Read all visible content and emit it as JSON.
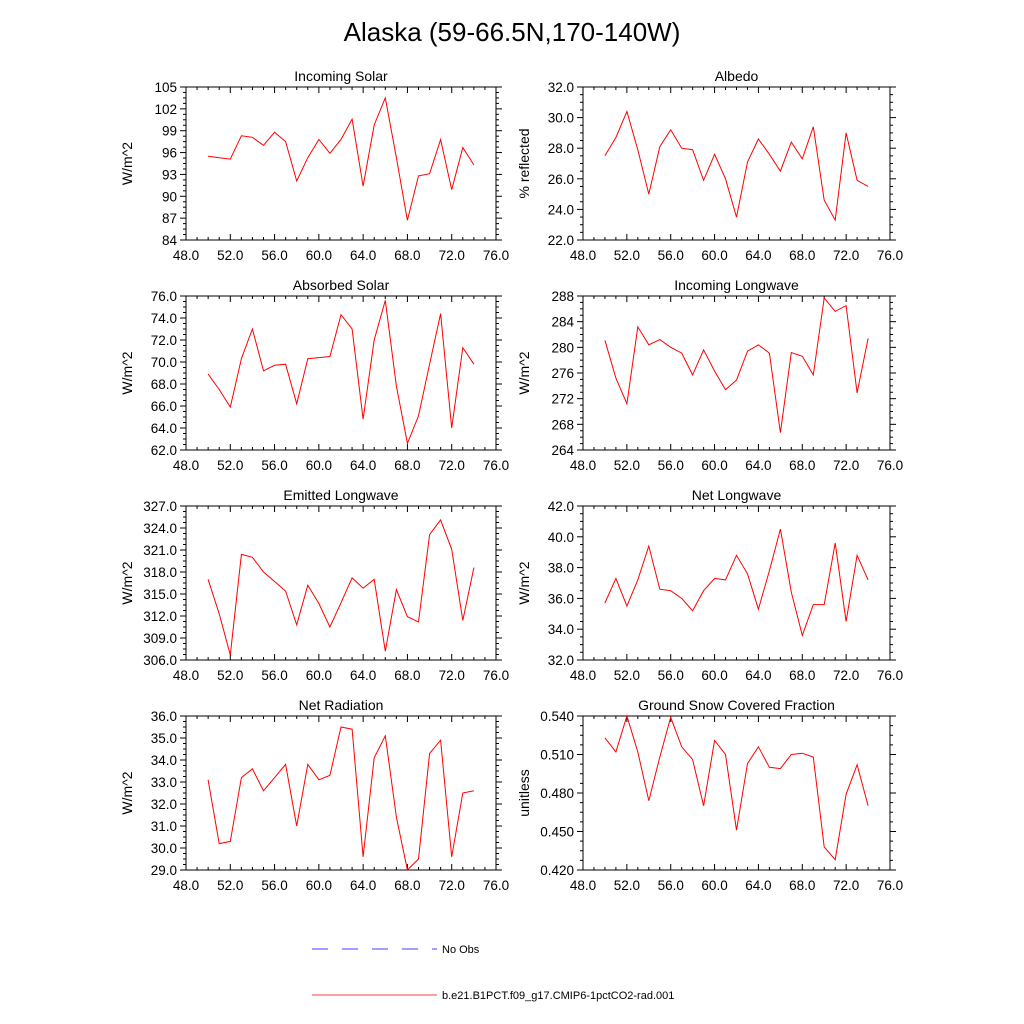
{
  "title": "Alaska (59-66.5N,170-140W)",
  "legend": {
    "items": [
      {
        "label": "No Obs",
        "color": "#0000ff",
        "style": "dashed"
      },
      {
        "label": "b.e21.B1PCT.f09_g17.CMIP6-1pctCO2-rad.001",
        "color": "#ff0000",
        "style": "solid"
      }
    ]
  },
  "chart_data": [
    {
      "type": "line",
      "title": "Incoming Solar",
      "ylabel": "W/m^2",
      "xlim": [
        48,
        76
      ],
      "ylim": [
        84,
        105
      ],
      "xticks": [
        "48.0",
        "52.0",
        "56.0",
        "60.0",
        "64.0",
        "68.0",
        "72.0",
        "76.0"
      ],
      "yticks": [
        "84",
        "87",
        "90",
        "93",
        "96",
        "99",
        "102",
        "105"
      ],
      "grid": false,
      "series": [
        {
          "name": "b.e21.B1PCT.f09_g17.CMIP6-1pctCO2-rad.001",
          "color": "#ff0000",
          "x": [
            50,
            51,
            52,
            53,
            54,
            55,
            56,
            57,
            58,
            59,
            60,
            61,
            62,
            63,
            64,
            65,
            66,
            67,
            68,
            69,
            70,
            71,
            72,
            73,
            74
          ],
          "y": [
            95.5,
            95.3,
            95.1,
            98.3,
            98.1,
            97.0,
            98.8,
            97.5,
            92.1,
            95.3,
            97.8,
            95.9,
            97.8,
            100.6,
            91.4,
            99.8,
            103.5,
            95.3,
            86.7,
            92.8,
            93.1,
            97.8,
            90.9,
            96.7,
            94.3
          ]
        }
      ]
    },
    {
      "type": "line",
      "title": "Albedo",
      "ylabel": "% reflected",
      "xlim": [
        48,
        76
      ],
      "ylim": [
        22,
        32
      ],
      "xticks": [
        "48.0",
        "52.0",
        "56.0",
        "60.0",
        "64.0",
        "68.0",
        "72.0",
        "76.0"
      ],
      "yticks": [
        "22.0",
        "24.0",
        "26.0",
        "28.0",
        "30.0",
        "32.0"
      ],
      "grid": false,
      "series": [
        {
          "name": "b.e21.B1PCT.f09_g17.CMIP6-1pctCO2-rad.001",
          "color": "#ff0000",
          "x": [
            50,
            51,
            52,
            53,
            54,
            55,
            56,
            57,
            58,
            59,
            60,
            61,
            62,
            63,
            64,
            65,
            66,
            67,
            68,
            69,
            70,
            71,
            72,
            73,
            74
          ],
          "y": [
            27.5,
            28.7,
            30.4,
            27.9,
            25.0,
            28.1,
            29.2,
            28.0,
            27.9,
            25.9,
            27.6,
            26.0,
            23.5,
            27.1,
            28.6,
            27.6,
            26.5,
            28.4,
            27.3,
            29.4,
            24.6,
            23.3,
            29.0,
            25.9,
            25.5
          ]
        }
      ]
    },
    {
      "type": "line",
      "title": "Absorbed Solar",
      "ylabel": "W/m^2",
      "xlim": [
        48,
        76
      ],
      "ylim": [
        62,
        76
      ],
      "xticks": [
        "48.0",
        "52.0",
        "56.0",
        "60.0",
        "64.0",
        "68.0",
        "72.0",
        "76.0"
      ],
      "yticks": [
        "62.0",
        "64.0",
        "66.0",
        "68.0",
        "70.0",
        "72.0",
        "74.0",
        "76.0"
      ],
      "grid": false,
      "series": [
        {
          "name": "b.e21.B1PCT.f09_g17.CMIP6-1pctCO2-rad.001",
          "color": "#ff0000",
          "x": [
            50,
            51,
            52,
            53,
            54,
            55,
            56,
            57,
            58,
            59,
            60,
            61,
            62,
            63,
            64,
            65,
            66,
            67,
            68,
            69,
            70,
            71,
            72,
            73,
            74
          ],
          "y": [
            68.9,
            67.5,
            65.9,
            70.3,
            73.0,
            69.2,
            69.7,
            69.8,
            66.2,
            70.3,
            70.4,
            70.5,
            74.3,
            73.0,
            64.8,
            72.0,
            75.6,
            67.8,
            62.6,
            65.1,
            69.8,
            74.4,
            64.0,
            71.3,
            69.8
          ]
        }
      ]
    },
    {
      "type": "line",
      "title": "Incoming Longwave",
      "ylabel": "W/m^2",
      "xlim": [
        48,
        76
      ],
      "ylim": [
        264,
        288
      ],
      "xticks": [
        "48.0",
        "52.0",
        "56.0",
        "60.0",
        "64.0",
        "68.0",
        "72.0",
        "76.0"
      ],
      "yticks": [
        "264",
        "268",
        "272",
        "276",
        "280",
        "284",
        "288"
      ],
      "grid": false,
      "series": [
        {
          "name": "b.e21.B1PCT.f09_g17.CMIP6-1pctCO2-rad.001",
          "color": "#ff0000",
          "x": [
            50,
            51,
            52,
            53,
            54,
            55,
            56,
            57,
            58,
            59,
            60,
            61,
            62,
            63,
            64,
            65,
            66,
            67,
            68,
            69,
            70,
            71,
            72,
            73,
            74
          ],
          "y": [
            281.1,
            275.2,
            271.2,
            283.2,
            280.4,
            281.2,
            280.0,
            279.1,
            275.7,
            279.6,
            276.3,
            273.4,
            274.9,
            279.4,
            280.4,
            279.1,
            266.7,
            279.2,
            278.6,
            275.7,
            287.7,
            285.6,
            286.5,
            272.9,
            281.4
          ]
        }
      ]
    },
    {
      "type": "line",
      "title": "Emitted Longwave",
      "ylabel": "W/m^2",
      "xlim": [
        48,
        76
      ],
      "ylim": [
        306,
        327
      ],
      "xticks": [
        "48.0",
        "52.0",
        "56.0",
        "60.0",
        "64.0",
        "68.0",
        "72.0",
        "76.0"
      ],
      "yticks": [
        "306.0",
        "309.0",
        "312.0",
        "315.0",
        "318.0",
        "321.0",
        "324.0",
        "327.0"
      ],
      "grid": false,
      "series": [
        {
          "name": "b.e21.B1PCT.f09_g17.CMIP6-1pctCO2-rad.001",
          "color": "#ff0000",
          "x": [
            50,
            51,
            52,
            53,
            54,
            55,
            56,
            57,
            58,
            59,
            60,
            61,
            62,
            63,
            64,
            65,
            66,
            67,
            68,
            69,
            70,
            71,
            72,
            73,
            74
          ],
          "y": [
            317.0,
            312.3,
            306.7,
            320.4,
            320.0,
            318.0,
            316.7,
            315.4,
            310.8,
            316.2,
            313.7,
            310.5,
            313.8,
            317.2,
            315.8,
            317.0,
            307.2,
            315.6,
            311.9,
            311.2,
            323.1,
            325.1,
            321.1,
            311.4,
            318.6
          ]
        }
      ]
    },
    {
      "type": "line",
      "title": "Net Longwave",
      "ylabel": "W/m^2",
      "xlim": [
        48,
        76
      ],
      "ylim": [
        32,
        42
      ],
      "xticks": [
        "48.0",
        "52.0",
        "56.0",
        "60.0",
        "64.0",
        "68.0",
        "72.0",
        "76.0"
      ],
      "yticks": [
        "32.0",
        "34.0",
        "36.0",
        "38.0",
        "40.0",
        "42.0"
      ],
      "grid": false,
      "series": [
        {
          "name": "b.e21.B1PCT.f09_g17.CMIP6-1pctCO2-rad.001",
          "color": "#ff0000",
          "x": [
            50,
            51,
            52,
            53,
            54,
            55,
            56,
            57,
            58,
            59,
            60,
            61,
            62,
            63,
            64,
            65,
            66,
            67,
            68,
            69,
            70,
            71,
            72,
            73,
            74
          ],
          "y": [
            35.7,
            37.3,
            35.5,
            37.2,
            39.4,
            36.6,
            36.5,
            36.0,
            35.2,
            36.5,
            37.3,
            37.2,
            38.8,
            37.6,
            35.3,
            37.8,
            40.5,
            36.4,
            33.6,
            35.6,
            35.6,
            39.6,
            34.5,
            38.8,
            37.2
          ]
        }
      ]
    },
    {
      "type": "line",
      "title": "Net Radiation",
      "ylabel": "W/m^2",
      "xlim": [
        48,
        76
      ],
      "ylim": [
        29,
        36
      ],
      "xticks": [
        "48.0",
        "52.0",
        "56.0",
        "60.0",
        "64.0",
        "68.0",
        "72.0",
        "76.0"
      ],
      "yticks": [
        "29.0",
        "30.0",
        "31.0",
        "32.0",
        "33.0",
        "34.0",
        "35.0",
        "36.0"
      ],
      "grid": false,
      "series": [
        {
          "name": "b.e21.B1PCT.f09_g17.CMIP6-1pctCO2-rad.001",
          "color": "#ff0000",
          "x": [
            50,
            51,
            52,
            53,
            54,
            55,
            56,
            57,
            58,
            59,
            60,
            61,
            62,
            63,
            64,
            65,
            66,
            67,
            68,
            69,
            70,
            71,
            72,
            73,
            74
          ],
          "y": [
            33.1,
            30.2,
            30.3,
            33.2,
            33.6,
            32.6,
            33.2,
            33.8,
            31.0,
            33.8,
            33.1,
            33.3,
            35.5,
            35.4,
            29.6,
            34.1,
            35.1,
            31.4,
            29.0,
            29.5,
            34.3,
            34.9,
            29.6,
            32.5,
            32.6
          ]
        }
      ]
    },
    {
      "type": "line",
      "title": "Ground Snow Covered Fraction",
      "ylabel": "unitless",
      "xlim": [
        48,
        76
      ],
      "ylim": [
        0.42,
        0.54
      ],
      "xticks": [
        "48.0",
        "52.0",
        "56.0",
        "60.0",
        "64.0",
        "68.0",
        "72.0",
        "76.0"
      ],
      "yticks": [
        "0.420",
        "0.450",
        "0.480",
        "0.510",
        "0.540"
      ],
      "grid": false,
      "series": [
        {
          "name": "b.e21.B1PCT.f09_g17.CMIP6-1pctCO2-rad.001",
          "color": "#ff0000",
          "x": [
            50,
            51,
            52,
            53,
            54,
            55,
            56,
            57,
            58,
            59,
            60,
            61,
            62,
            63,
            64,
            65,
            66,
            67,
            68,
            69,
            70,
            71,
            72,
            73,
            74
          ],
          "y": [
            0.523,
            0.512,
            0.54,
            0.512,
            0.474,
            0.508,
            0.539,
            0.516,
            0.506,
            0.47,
            0.521,
            0.51,
            0.451,
            0.503,
            0.516,
            0.5,
            0.499,
            0.51,
            0.511,
            0.508,
            0.438,
            0.428,
            0.479,
            0.502,
            0.47
          ]
        }
      ]
    }
  ]
}
